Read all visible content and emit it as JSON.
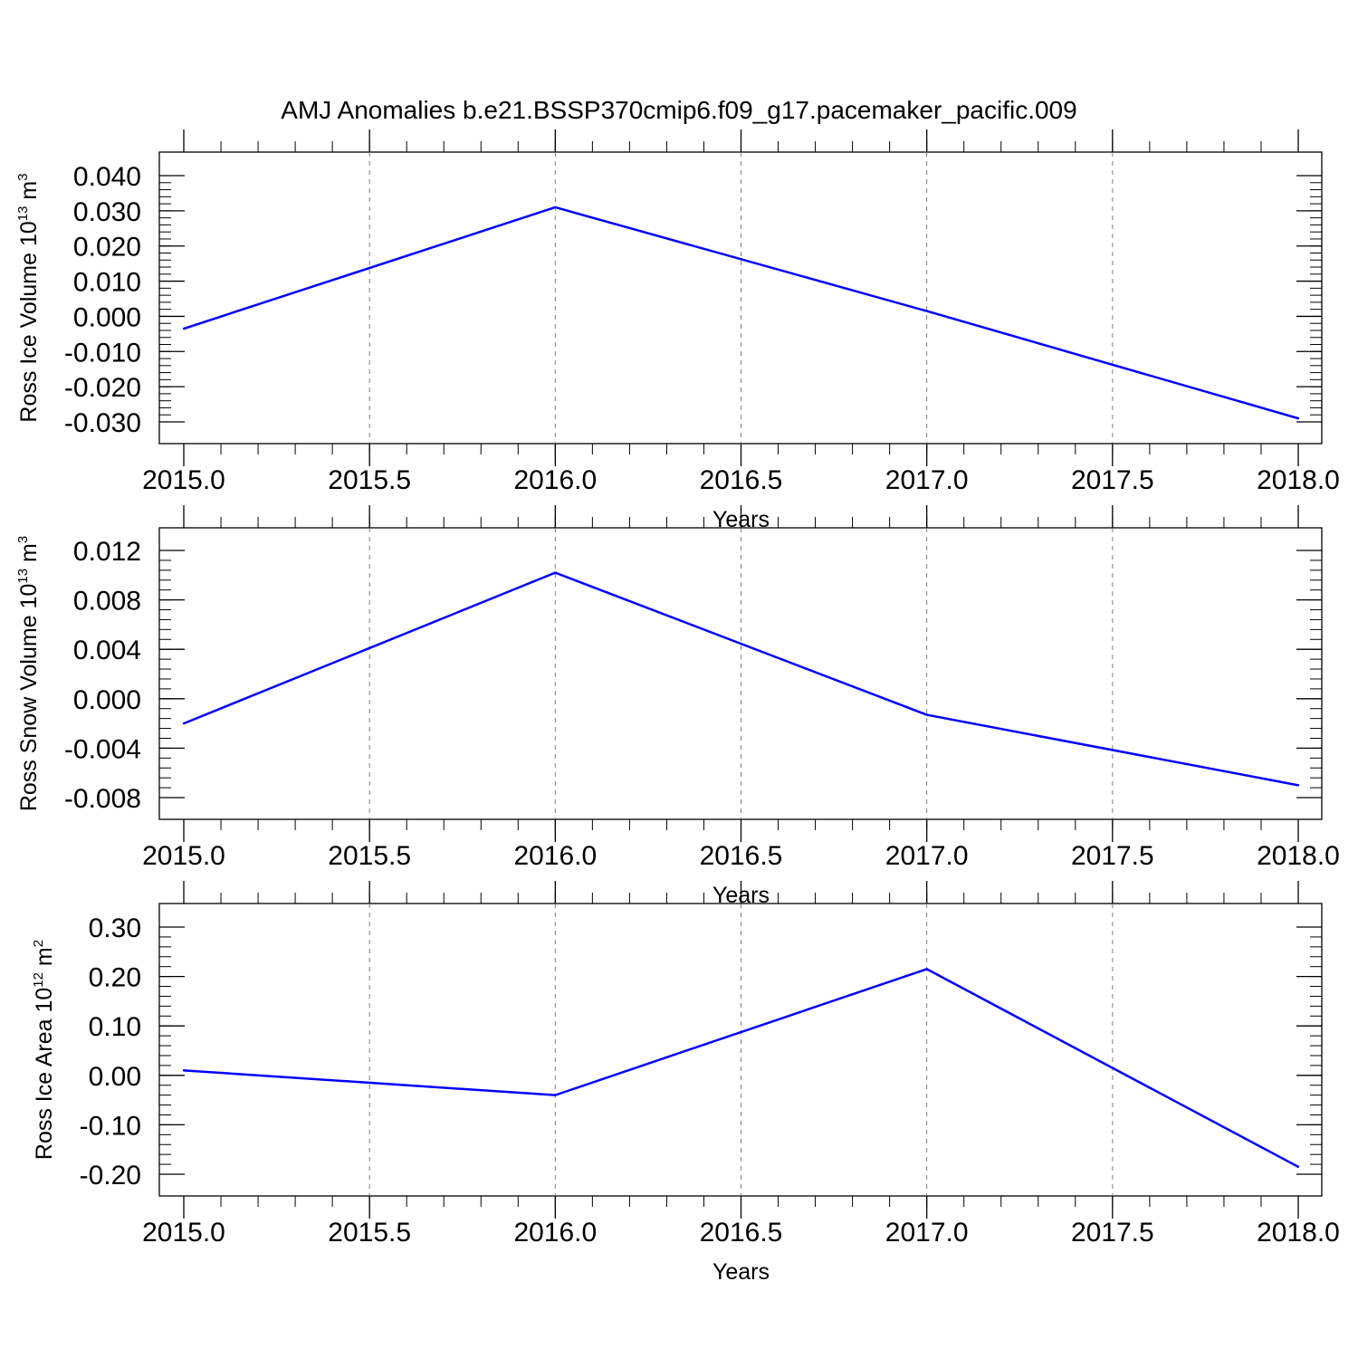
{
  "title": "AMJ Anomalies b.e21.BSSP370cmip6.f09_g17.pacemaker_pacific.009",
  "colors": {
    "series": "#0000ff",
    "axis": "#000000",
    "grid": "#808080"
  },
  "chart_data": [
    {
      "type": "line",
      "xlabel": "Years",
      "ylabel": {
        "text": "Ross Ice Volume 10",
        "sup1": "13",
        "mid": " m",
        "sup2": "3"
      },
      "xlim": [
        2015.0,
        2018.0
      ],
      "ylim": [
        -0.03,
        0.04
      ],
      "xticks": [
        "2015.0",
        "2015.5",
        "2016.0",
        "2016.5",
        "2017.0",
        "2017.5",
        "2018.0"
      ],
      "yticks": [
        "0.040",
        "0.030",
        "0.020",
        "0.010",
        "0.000",
        "-0.010",
        "-0.020",
        "-0.030"
      ],
      "grid": "vertical dashed",
      "x": [
        2015.0,
        2016.0,
        2017.0,
        2018.0
      ],
      "y": [
        -0.0035,
        0.031,
        0.0015,
        -0.029
      ]
    },
    {
      "type": "line",
      "xlabel": "Years",
      "ylabel": {
        "text": "Ross Snow Volume 10",
        "sup1": "13",
        "mid": " m",
        "sup2": "3"
      },
      "xlim": [
        2015.0,
        2018.0
      ],
      "ylim": [
        -0.009,
        0.012
      ],
      "xticks": [
        "2015.0",
        "2015.5",
        "2016.0",
        "2016.5",
        "2017.0",
        "2017.5",
        "2018.0"
      ],
      "yticks": [
        "0.012",
        "0.008",
        "0.004",
        "0.000",
        "-0.004",
        "-0.008"
      ],
      "grid": "vertical dashed",
      "x": [
        2015.0,
        2016.0,
        2017.0,
        2018.0
      ],
      "y": [
        -0.002,
        0.0102,
        -0.0013,
        -0.007
      ]
    },
    {
      "type": "line",
      "xlabel": "Years",
      "ylabel": {
        "text": "Ross Ice Area 10",
        "sup1": "12",
        "mid": " m",
        "sup2": "2"
      },
      "xlim": [
        2015.0,
        2018.0
      ],
      "ylim": [
        -0.2,
        0.3
      ],
      "xticks": [
        "2015.0",
        "2015.5",
        "2016.0",
        "2016.5",
        "2017.0",
        "2017.5",
        "2018.0"
      ],
      "yticks": [
        "0.30",
        "0.20",
        "0.10",
        "0.00",
        "-0.10",
        "-0.20"
      ],
      "grid": "vertical dashed",
      "x": [
        2015.0,
        2016.0,
        2017.0,
        2018.0
      ],
      "y": [
        0.01,
        -0.04,
        0.215,
        -0.185
      ]
    }
  ]
}
